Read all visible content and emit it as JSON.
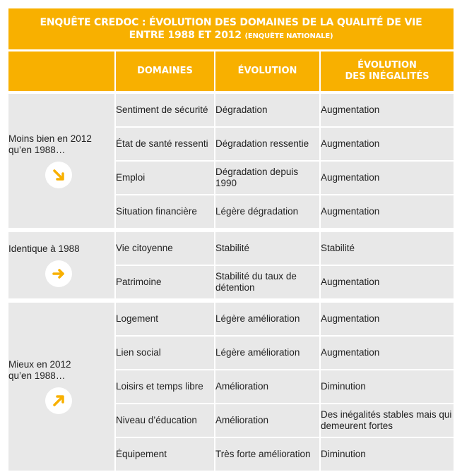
{
  "title": {
    "line1": "Enquête CREDOC : évolution des domaines de la qualité de vie",
    "line2": "entre 1988 et 2012",
    "line2_small": "(enquête nationale)"
  },
  "headers": {
    "domaines": "Domaines",
    "evolution": "Évolution",
    "inegalites_line1": "Évolution",
    "inegalites_line2": "des inégalités"
  },
  "groups": [
    {
      "label_line1": "Moins bien en 2012",
      "label_line2": "qu’en 1988…",
      "icon": "arrow-down-right-icon",
      "rows": [
        {
          "domaine": "Sentiment de sécurité",
          "evolution": "Dégradation",
          "inegalites": "Augmentation"
        },
        {
          "domaine": "État de santé ressenti",
          "evolution": "Dégradation ressentie",
          "inegalites": "Augmentation"
        },
        {
          "domaine": "Emploi",
          "evolution": "Dégradation depuis 1990",
          "inegalites": "Augmentation"
        },
        {
          "domaine": "Situation financière",
          "evolution": "Légère dégradation",
          "inegalites": "Augmentation"
        }
      ]
    },
    {
      "label_line1": "Identique à 1988",
      "label_line2": "",
      "icon": "arrow-right-icon",
      "rows": [
        {
          "domaine": "Vie citoyenne",
          "evolution": "Stabilité",
          "inegalites": "Stabilité"
        },
        {
          "domaine": "Patrimoine",
          "evolution": "Stabilité du taux de détention",
          "inegalites": "Augmentation"
        }
      ]
    },
    {
      "label_line1": "Mieux en 2012",
      "label_line2": "qu’en 1988…",
      "icon": "arrow-up-right-icon",
      "rows": [
        {
          "domaine": "Logement",
          "evolution": "Légère amélioration",
          "inegalites": "Augmentation"
        },
        {
          "domaine": "Lien social",
          "evolution": "Légère amélioration",
          "inegalites": "Augmentation"
        },
        {
          "domaine": "Loisirs et temps libre",
          "evolution": "Amélioration",
          "inegalites": "Diminution"
        },
        {
          "domaine": "Niveau d’éducation",
          "evolution": "Amélioration",
          "inegalites": "Des inégalités stables mais qui demeurent fortes"
        },
        {
          "domaine": "Équipement",
          "evolution": "Très forte amélioration",
          "inegalites": "Diminution"
        }
      ]
    }
  ],
  "colors": {
    "accent": "#f8b000",
    "cell_bg": "#e8e8e8",
    "text": "#222222"
  }
}
